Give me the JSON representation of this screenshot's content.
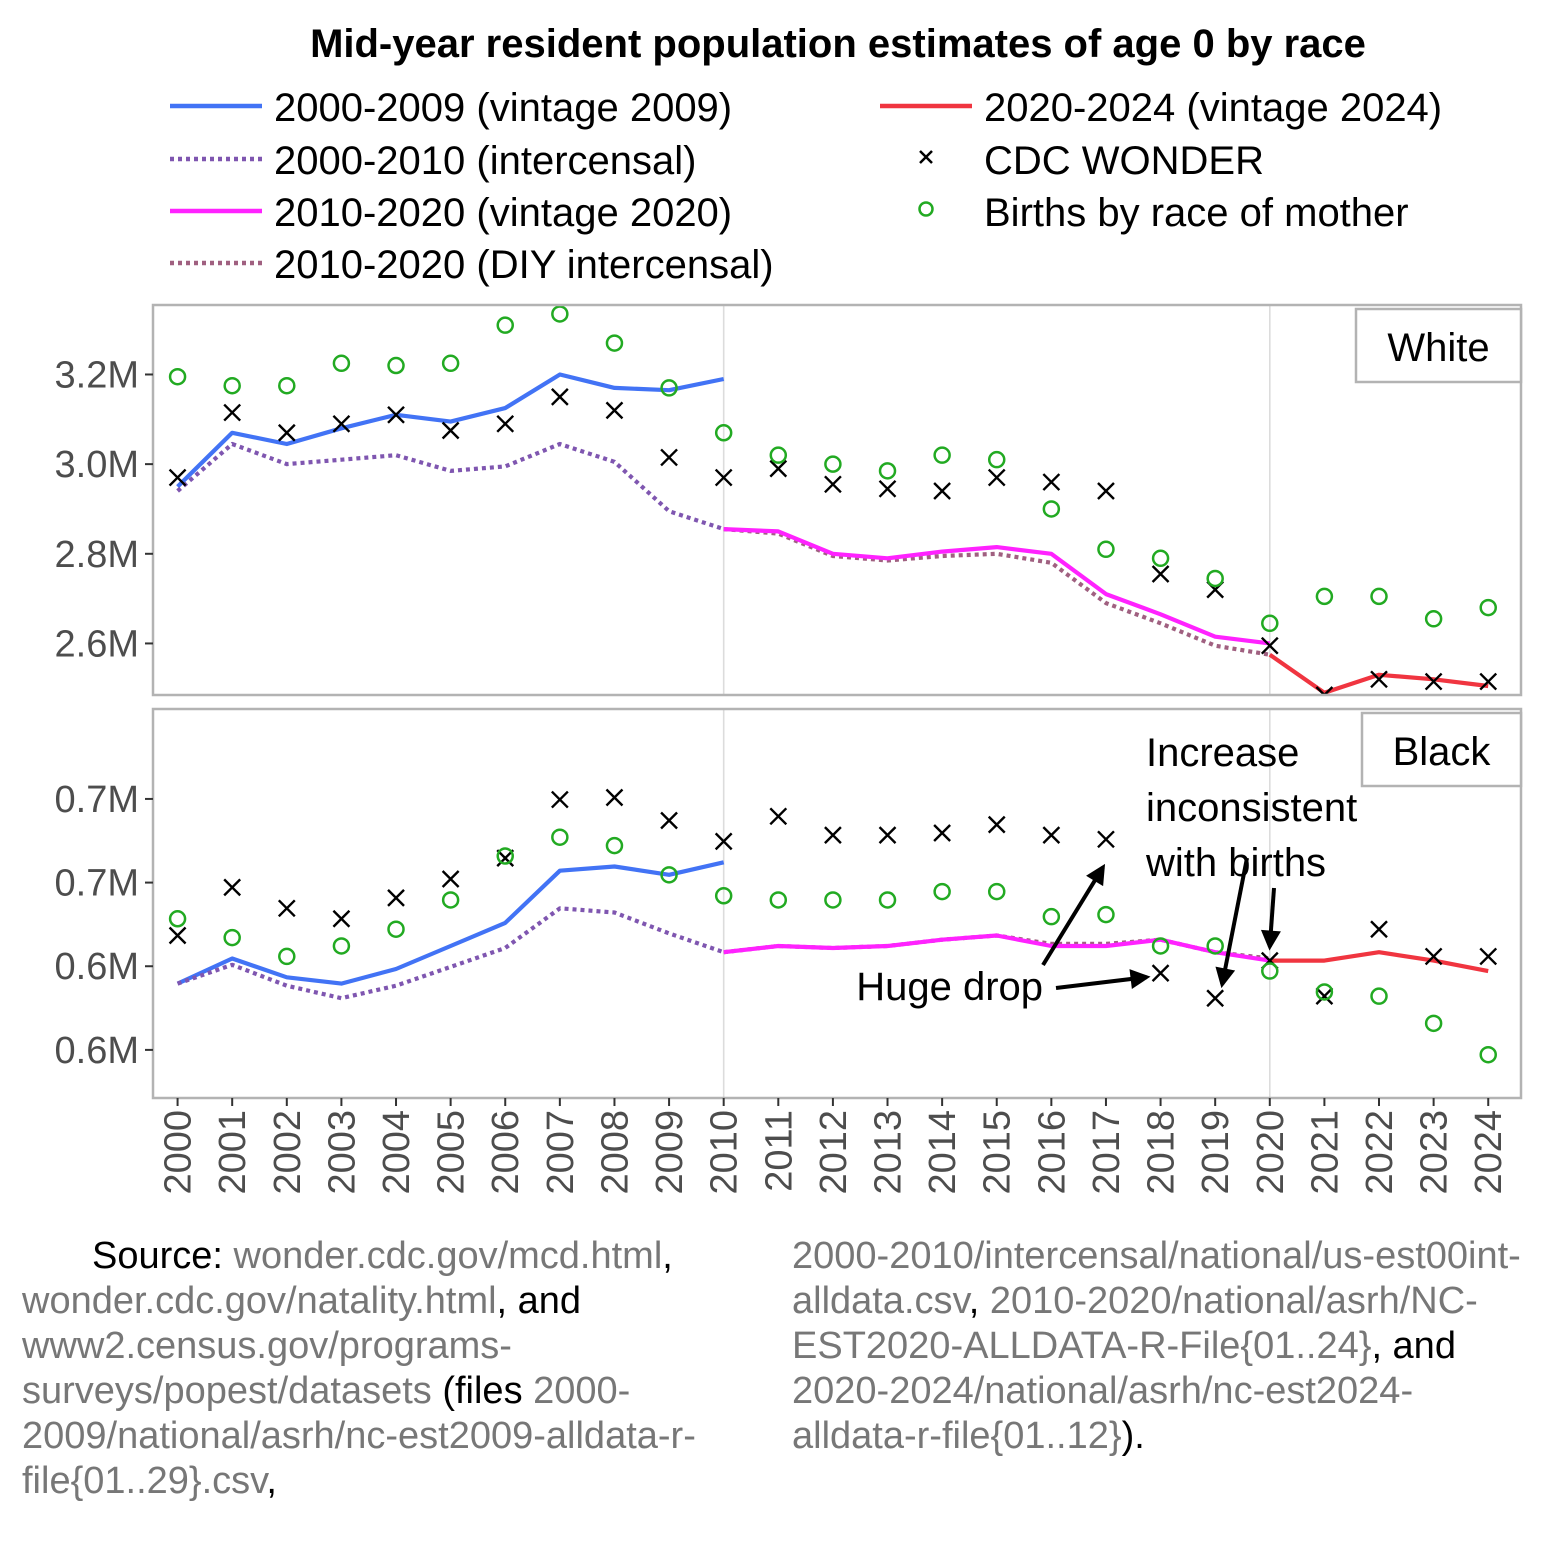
{
  "chart_data": {
    "type": "line",
    "title": "Mid-year resident population estimates of age 0 by race",
    "x": [
      2000,
      2001,
      2002,
      2003,
      2004,
      2005,
      2006,
      2007,
      2008,
      2009,
      2010,
      2011,
      2012,
      2013,
      2014,
      2015,
      2016,
      2017,
      2018,
      2019,
      2020,
      2021,
      2022,
      2023,
      2024
    ],
    "legend": {
      "placement": "top",
      "entries": [
        {
          "label": "2000-2009 (vintage 2009)",
          "kind": "line",
          "color": "#4273f5",
          "dash": "solid"
        },
        {
          "label": "2000-2010 (intercensal)",
          "kind": "line",
          "color": "#7f56b0",
          "dash": "dotted"
        },
        {
          "label": "2010-2020 (vintage 2020)",
          "kind": "line",
          "color": "#ff22ff",
          "dash": "solid"
        },
        {
          "label": "2010-2020 (DIY intercensal)",
          "kind": "line",
          "color": "#a06080",
          "dash": "dotted"
        },
        {
          "label": "2020-2024 (vintage 2024)",
          "kind": "line",
          "color": "#f03540",
          "dash": "solid"
        },
        {
          "label": "CDC WONDER",
          "kind": "cross",
          "color": "#000000"
        },
        {
          "label": "Births by race of mother",
          "kind": "circle",
          "color": "#22aa22"
        }
      ]
    },
    "panels": [
      {
        "strip": "White",
        "ylim": [
          2.485,
          3.355
        ],
        "yticks": [
          2.6,
          2.8,
          3.0,
          3.2
        ],
        "ytick_labels": [
          "2.6M",
          "2.8M",
          "3.0M",
          "3.2M"
        ],
        "series": [
          {
            "key": "v2009",
            "x": [
              2000,
              2001,
              2002,
              2003,
              2004,
              2005,
              2006,
              2007,
              2008,
              2009,
              2010
            ],
            "y": [
              2.95,
              3.07,
              3.045,
              3.08,
              3.11,
              3.095,
              3.125,
              3.2,
              3.17,
              3.165,
              3.19
            ]
          },
          {
            "key": "int2000",
            "x": [
              2000,
              2001,
              2002,
              2003,
              2004,
              2005,
              2006,
              2007,
              2008,
              2009,
              2010
            ],
            "y": [
              2.94,
              3.045,
              3.0,
              3.01,
              3.02,
              2.985,
              2.995,
              3.045,
              3.005,
              2.895,
              2.855
            ]
          },
          {
            "key": "diy",
            "x": [
              2010,
              2011,
              2012,
              2013,
              2014,
              2015,
              2016,
              2017,
              2018,
              2019,
              2020
            ],
            "y": [
              2.855,
              2.845,
              2.795,
              2.785,
              2.795,
              2.8,
              2.78,
              2.69,
              2.645,
              2.595,
              2.575
            ]
          },
          {
            "key": "v2020",
            "x": [
              2010,
              2011,
              2012,
              2013,
              2014,
              2015,
              2016,
              2017,
              2018,
              2019,
              2020
            ],
            "y": [
              2.855,
              2.85,
              2.8,
              2.79,
              2.805,
              2.815,
              2.8,
              2.71,
              2.665,
              2.615,
              2.6
            ]
          },
          {
            "key": "v2024",
            "x": [
              2020,
              2021,
              2022,
              2023,
              2024
            ],
            "y": [
              2.575,
              2.49,
              2.53,
              2.52,
              2.505
            ]
          },
          {
            "key": "cdc",
            "x": [
              2000,
              2001,
              2002,
              2003,
              2004,
              2005,
              2006,
              2007,
              2008,
              2009,
              2010,
              2011,
              2012,
              2013,
              2014,
              2015,
              2016,
              2017,
              2018,
              2019,
              2020,
              2021,
              2022,
              2023,
              2024
            ],
            "y": [
              2.97,
              3.115,
              3.07,
              3.09,
              3.11,
              3.075,
              3.09,
              3.15,
              3.12,
              3.015,
              2.97,
              2.99,
              2.955,
              2.945,
              2.94,
              2.97,
              2.96,
              2.94,
              2.755,
              2.72,
              2.595,
              2.485,
              2.52,
              2.515,
              2.515
            ]
          },
          {
            "key": "births",
            "x": [
              2000,
              2001,
              2002,
              2003,
              2004,
              2005,
              2006,
              2007,
              2008,
              2009,
              2010,
              2011,
              2012,
              2013,
              2014,
              2015,
              2016,
              2017,
              2018,
              2019,
              2020,
              2021,
              2022,
              2023,
              2024
            ],
            "y": [
              3.195,
              3.175,
              3.175,
              3.225,
              3.22,
              3.225,
              3.31,
              3.335,
              3.27,
              3.17,
              3.07,
              3.02,
              3.0,
              2.985,
              3.02,
              3.01,
              2.9,
              2.81,
              2.79,
              2.745,
              2.645,
              2.705,
              2.705,
              2.655,
              2.68
            ]
          }
        ]
      },
      {
        "strip": "Black",
        "ylim": [
          0.547,
          0.733
        ],
        "yticks": [
          0.57,
          0.61,
          0.65,
          0.69
        ],
        "ytick_labels": [
          "0.6M",
          "0.6M",
          "0.7M",
          "0.7M"
        ],
        "series": [
          {
            "key": "v2009",
            "x": [
              2000,
              2001,
              2002,
              2003,
              2004,
              2005,
              2006,
              2007,
              2008,
              2009,
              2010
            ],
            "y": [
              0.6017,
              0.6137,
              0.6047,
              0.6017,
              0.6087,
              0.6197,
              0.6307,
              0.6557,
              0.6577,
              0.6537,
              0.6597
            ]
          },
          {
            "key": "int2000",
            "x": [
              2000,
              2001,
              2002,
              2003,
              2004,
              2005,
              2006,
              2007,
              2008,
              2009,
              2010
            ],
            "y": [
              0.6017,
              0.6107,
              0.6007,
              0.5947,
              0.6007,
              0.6097,
              0.6187,
              0.6377,
              0.6357,
              0.6257,
              0.6167
            ]
          },
          {
            "key": "diy",
            "x": [
              2010,
              2011,
              2012,
              2013,
              2014,
              2015,
              2016,
              2017,
              2018,
              2019,
              2020
            ],
            "y": [
              0.6167,
              0.6197,
              0.6187,
              0.6197,
              0.6227,
              0.6247,
              0.6207,
              0.6207,
              0.6227,
              0.6167,
              0.6137
            ]
          },
          {
            "key": "v2020",
            "x": [
              2010,
              2011,
              2012,
              2013,
              2014,
              2015,
              2016,
              2017,
              2018,
              2019,
              2020
            ],
            "y": [
              0.6167,
              0.6197,
              0.6187,
              0.6197,
              0.6227,
              0.6247,
              0.6197,
              0.6197,
              0.6227,
              0.6167,
              0.6127
            ]
          },
          {
            "key": "v2024",
            "x": [
              2020,
              2021,
              2022,
              2023,
              2024
            ],
            "y": [
              0.6127,
              0.6127,
              0.6167,
              0.6127,
              0.6077
            ]
          },
          {
            "key": "cdc",
            "x": [
              2000,
              2001,
              2002,
              2003,
              2004,
              2005,
              2006,
              2007,
              2008,
              2009,
              2010,
              2011,
              2012,
              2013,
              2014,
              2015,
              2016,
              2017,
              2018,
              2019,
              2020,
              2021,
              2022,
              2023,
              2024
            ],
            "y": [
              0.6247,
              0.6477,
              0.6377,
              0.6327,
              0.6427,
              0.6517,
              0.6617,
              0.6897,
              0.6907,
              0.6797,
              0.6697,
              0.6817,
              0.6727,
              0.6727,
              0.6737,
              0.6777,
              0.6727,
              0.6707,
              0.6067,
              0.5947,
              0.6127,
              0.5957,
              0.6277,
              0.6147,
              0.6147
            ]
          },
          {
            "key": "births",
            "x": [
              2000,
              2001,
              2002,
              2003,
              2004,
              2005,
              2006,
              2007,
              2008,
              2009,
              2010,
              2011,
              2012,
              2013,
              2014,
              2015,
              2016,
              2017,
              2018,
              2019,
              2020,
              2021,
              2022,
              2023,
              2024
            ],
            "y": [
              0.6327,
              0.6237,
              0.6147,
              0.6197,
              0.6277,
              0.6417,
              0.6627,
              0.6717,
              0.6677,
              0.6537,
              0.6437,
              0.6417,
              0.6417,
              0.6417,
              0.6457,
              0.6457,
              0.6337,
              0.6347,
              0.6197,
              0.6197,
              0.6077,
              0.5977,
              0.5957,
              0.5827,
              0.5677
            ]
          }
        ]
      }
    ],
    "annotations": [
      {
        "text": "Increase\ninconsistent\nwith births",
        "panel": "Black"
      },
      {
        "text": "Huge drop",
        "panel": "Black"
      }
    ],
    "x_tick_labels": [
      "2000",
      "2001",
      "2002",
      "2003",
      "2004",
      "2005",
      "2006",
      "2007",
      "2008",
      "2009",
      "2010",
      "2011",
      "2012",
      "2013",
      "2014",
      "2015",
      "2016",
      "2017",
      "2018",
      "2019",
      "2020",
      "2021",
      "2022",
      "2023",
      "2024"
    ],
    "grid": "vertical lines at 2000, 2010, 2020"
  },
  "source": {
    "label": "Source:",
    "url1": "wonder.cdc.gov/mcd.​html",
    "sep1": ", ",
    "url2": "wonder.cdc.gov/natality.html",
    "sep2": ", and ",
    "url3": "www2.census.gov/programs-​surveys/popest/datasets",
    "files_label": " (files ",
    "file1": "2000-​2009/national/asrh/nc-est2009-​alldata-r-file{01..29}.csv",
    "sep3": ", ",
    "file2": "2000-2010/​intercensal/national/us-est00int-​alldata.csv",
    "sep4": ", ",
    "file3": "2010-2020/national/asrh/​NC-EST2020-ALLDATA-R-File{01..​24}",
    "sep5": ", and ",
    "file4": "2020-2024/national/asrh/nc-​est2024-alldata-r-file{01..12}",
    "end": ")."
  }
}
